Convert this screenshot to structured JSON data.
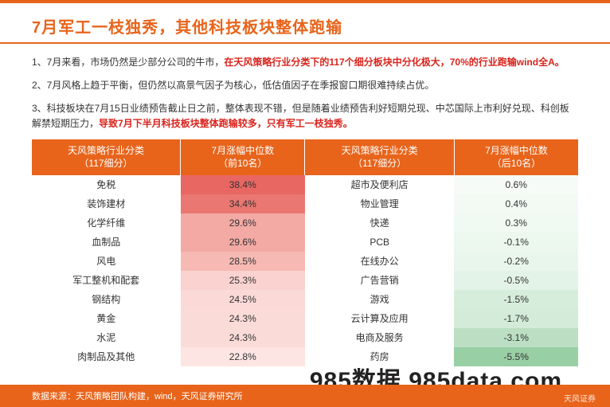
{
  "title": {
    "prefix_color": "#e8641b",
    "text_orange": "7月军工一枝独秀，其他科技板块整体跑输"
  },
  "paragraphs": {
    "p1_a": "1、7月来看，市场仍然是少部分公司的牛市，",
    "p1_b": "在天风策略行业分类下的117个细分板块中分化极大，70%的行业跑输wind全A。",
    "p2": "2、7月风格上趋于平衡，但仍然以高景气因子为核心，低估值因子在季报窗口期很难持续占优。",
    "p3_a": "3、科技板块在7月15日业绩预告截止日之前，整体表现不错，但是随着业绩预告利好短期兑现、中芯国际上市利好兑现、科创板解禁短期压力，",
    "p3_b": "导致7月下半月科技板块整体跑输较多，只有军工一枝独秀。"
  },
  "table": {
    "headers": [
      "天风策略行业分类\n（117细分）",
      "7月涨幅中位数\n（前10名）",
      "天风策略行业分类\n（117细分）",
      "7月涨幅中位数\n（后10名）"
    ],
    "header_bg": "#e8641b",
    "rows": [
      {
        "l_name": "免税",
        "l_val": "38.4%",
        "l_bg": "#e86762",
        "r_name": "超市及便利店",
        "r_val": "0.6%",
        "r_bg": "#f6fbf7"
      },
      {
        "l_name": "装饰建材",
        "l_val": "34.4%",
        "l_bg": "#ea7771",
        "r_name": "物业管理",
        "r_val": "0.4%",
        "r_bg": "#f3faf4"
      },
      {
        "l_name": "化学纤维",
        "l_val": "29.6%",
        "l_bg": "#f3a9a4",
        "r_name": "快递",
        "r_val": "0.3%",
        "r_bg": "#f0f9f2"
      },
      {
        "l_name": "血制品",
        "l_val": "29.6%",
        "l_bg": "#f3a9a4",
        "r_name": "PCB",
        "r_val": "-0.1%",
        "r_bg": "#ecf7ee"
      },
      {
        "l_name": "风电",
        "l_val": "28.5%",
        "l_bg": "#f6b9b4",
        "r_name": "在线办公",
        "r_val": "-0.2%",
        "r_bg": "#e9f6eb"
      },
      {
        "l_name": "军工整机和配套",
        "l_val": "25.3%",
        "l_bg": "#fad2cf",
        "r_name": "广告营销",
        "r_val": "-0.5%",
        "r_bg": "#e4f3e7"
      },
      {
        "l_name": "钢结构",
        "l_val": "24.5%",
        "l_bg": "#fbd9d6",
        "r_name": "游戏",
        "r_val": "-1.5%",
        "r_bg": "#d7eddb"
      },
      {
        "l_name": "黄金",
        "l_val": "24.3%",
        "l_bg": "#fbdbd8",
        "r_name": "云计算及应用",
        "r_val": "-1.7%",
        "r_bg": "#d3ebd8"
      },
      {
        "l_name": "水泥",
        "l_val": "24.3%",
        "l_bg": "#fbdbd8",
        "r_name": "电商及服务",
        "r_val": "-3.1%",
        "r_bg": "#bcdfc3"
      },
      {
        "l_name": "肉制品及其他",
        "l_val": "22.8%",
        "l_bg": "#fce5e3",
        "r_name": "药房",
        "r_val": "-5.5%",
        "r_bg": "#99cfa5"
      }
    ]
  },
  "footer": "数据来源：天风策略团队构建，wind，天风证券研究所",
  "watermark": "985数据  985data.com",
  "logo": "天风证券"
}
